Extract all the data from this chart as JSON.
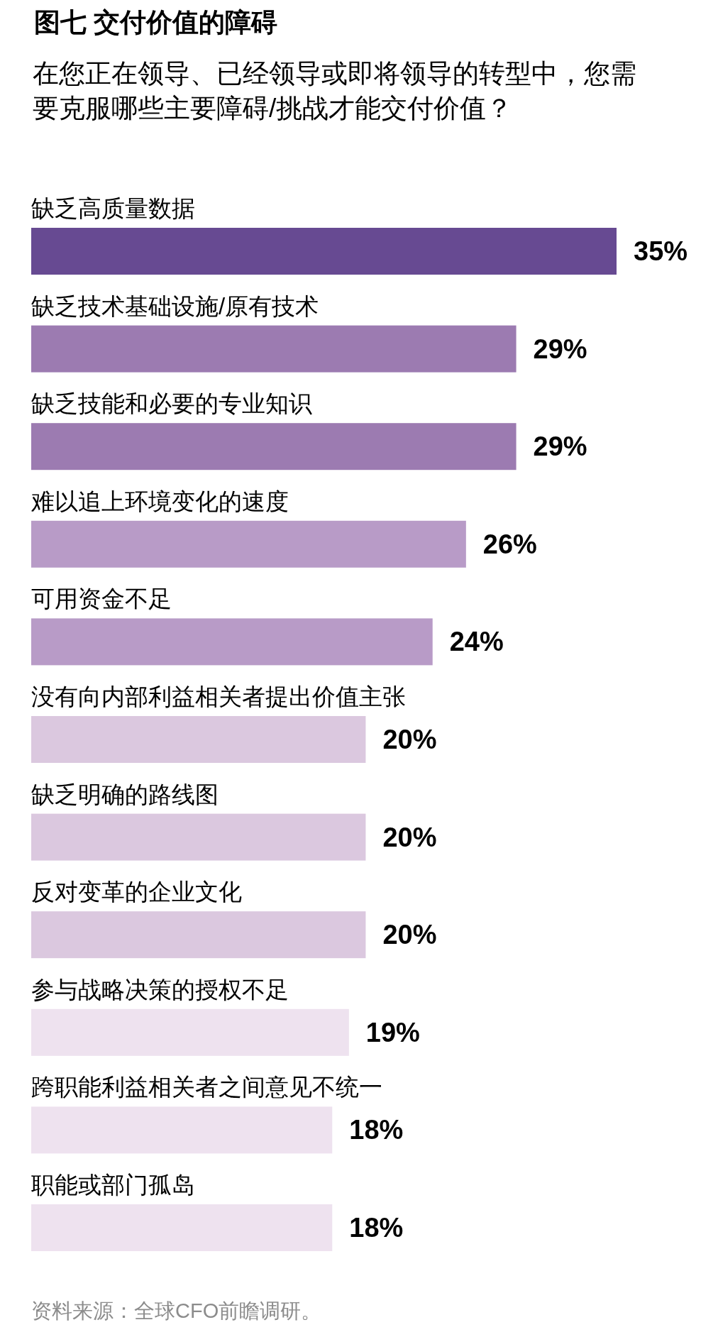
{
  "chart_data": {
    "type": "bar",
    "orientation": "horizontal",
    "title": "图七 交付价值的障碍",
    "subtitle": "在您正在领导、已经领导或即将领导的转型中，您需要克服哪些主要障碍/挑战才能交付价值？",
    "categories": [
      "缺乏高质量数据",
      "缺乏技术基础设施/原有技术",
      "缺乏技能和必要的专业知识",
      "难以追上环境变化的速度",
      "可用资金不足",
      "没有向内部利益相关者提出价值主张",
      "缺乏明确的路线图",
      "反对变革的企业文化",
      "参与战略决策的授权不足",
      "跨职能利益相关者之间意见不统一",
      "职能或部门孤岛"
    ],
    "values": [
      35,
      29,
      29,
      26,
      24,
      20,
      20,
      20,
      19,
      18,
      18
    ],
    "value_labels": [
      "35%",
      "29%",
      "29%",
      "26%",
      "24%",
      "20%",
      "20%",
      "20%",
      "19%",
      "18%",
      "18%"
    ],
    "colors": [
      "#674a92",
      "#9c7bb1",
      "#9c7bb1",
      "#b89bc7",
      "#b89bc7",
      "#dbc8df",
      "#dbc8df",
      "#dbc8df",
      "#eee2ef",
      "#eee2ef",
      "#eee2ef"
    ],
    "annotations": [
      "资料来源：全球CFO前瞻调研。"
    ]
  }
}
